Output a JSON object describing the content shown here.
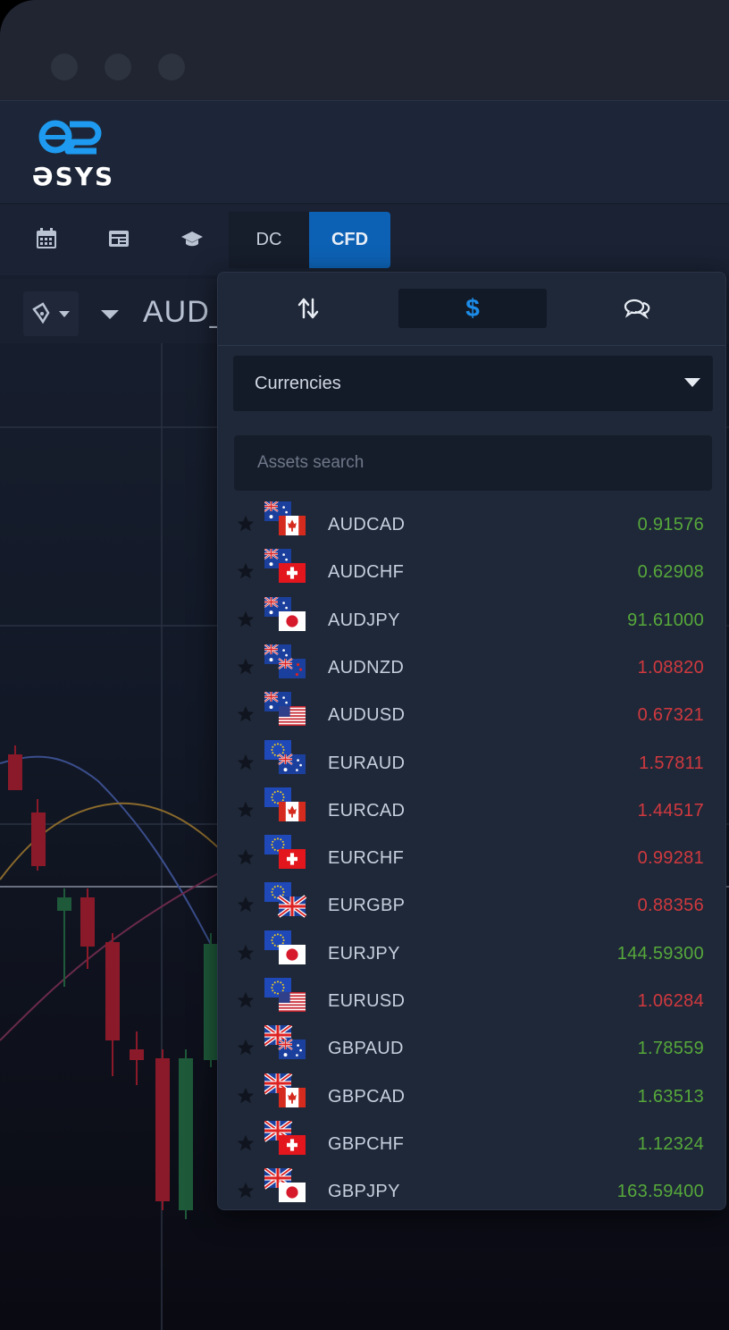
{
  "app": {
    "logo_text": "ƏSYS"
  },
  "toolbar": {
    "tabs": [
      {
        "label": "DC"
      },
      {
        "label": "CFD"
      }
    ]
  },
  "chart": {
    "symbol": "AUD_"
  },
  "panel": {
    "category": "Currencies",
    "search_placeholder": "Assets search",
    "assets": [
      {
        "pair": "AUDCAD",
        "price": "0.91576",
        "trend": "up"
      },
      {
        "pair": "AUDCHF",
        "price": "0.62908",
        "trend": "up"
      },
      {
        "pair": "AUDJPY",
        "price": "91.61000",
        "trend": "up"
      },
      {
        "pair": "AUDNZD",
        "price": "1.08820",
        "trend": "down"
      },
      {
        "pair": "AUDUSD",
        "price": "0.67321",
        "trend": "down"
      },
      {
        "pair": "EURAUD",
        "price": "1.57811",
        "trend": "down"
      },
      {
        "pair": "EURCAD",
        "price": "1.44517",
        "trend": "down"
      },
      {
        "pair": "EURCHF",
        "price": "0.99281",
        "trend": "down"
      },
      {
        "pair": "EURGBP",
        "price": "0.88356",
        "trend": "down"
      },
      {
        "pair": "EURJPY",
        "price": "144.59300",
        "trend": "up"
      },
      {
        "pair": "EURUSD",
        "price": "1.06284",
        "trend": "down"
      },
      {
        "pair": "GBPAUD",
        "price": "1.78559",
        "trend": "up"
      },
      {
        "pair": "GBPCAD",
        "price": "1.63513",
        "trend": "up"
      },
      {
        "pair": "GBPCHF",
        "price": "1.12324",
        "trend": "up"
      },
      {
        "pair": "GBPJPY",
        "price": "163.59400",
        "trend": "up"
      }
    ]
  }
}
